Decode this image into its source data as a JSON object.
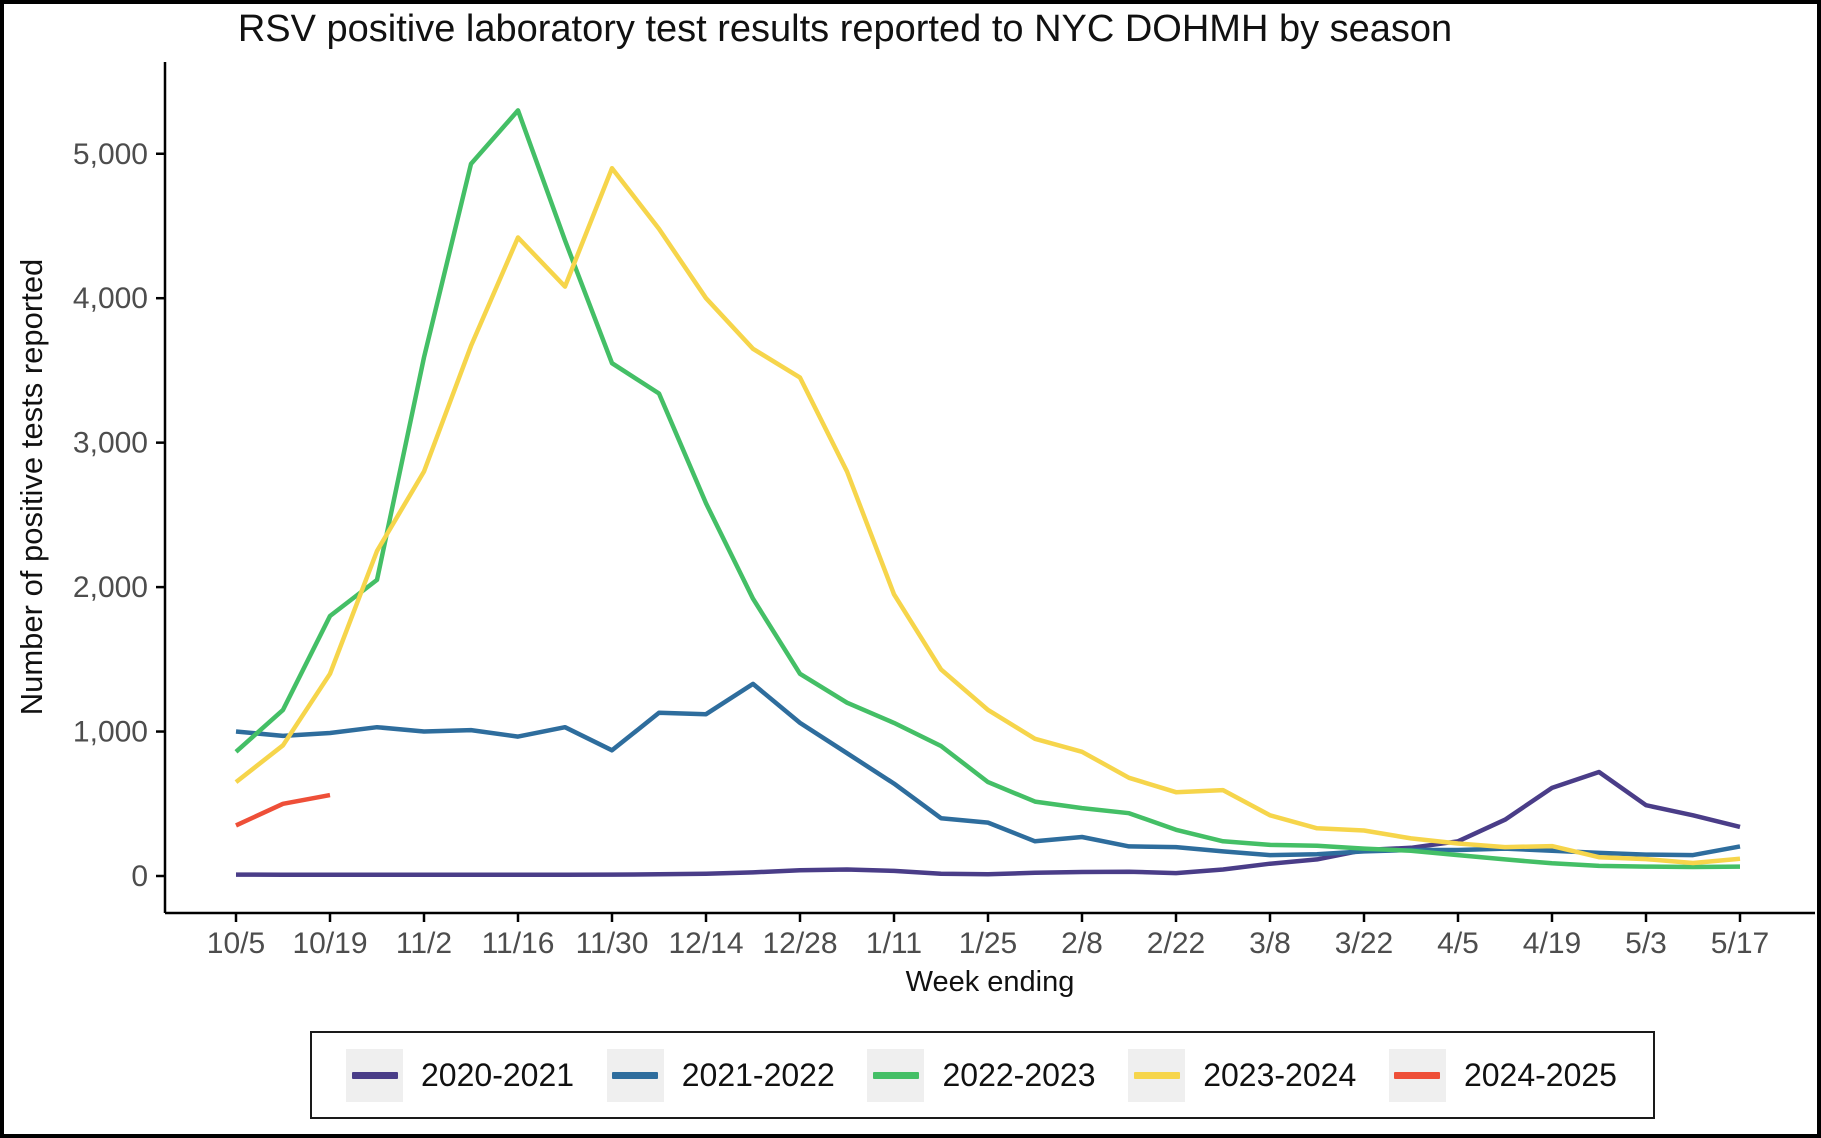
{
  "figure": {
    "title": "RSV positive laboratory test results reported to NYC DOHMH by season",
    "x_axis_label": "Week ending",
    "y_axis_label": "Number of positive tests reported"
  },
  "chart_data": {
    "type": "line",
    "title": "RSV positive laboratory test results reported to NYC DOHMH by season",
    "xlabel": "Week ending",
    "ylabel": "Number of positive tests reported",
    "grid": false,
    "legend_position": "bottom",
    "ylim": [
      0,
      5630
    ],
    "y_ticks": [
      0,
      1000,
      2000,
      3000,
      4000,
      5000
    ],
    "y_tick_labels": [
      "0",
      "1,000",
      "2,000",
      "3,000",
      "4,000",
      "5,000"
    ],
    "x": [
      "10/5",
      "10/12",
      "10/19",
      "10/26",
      "11/2",
      "11/9",
      "11/16",
      "11/23",
      "11/30",
      "12/7",
      "12/14",
      "12/21",
      "12/28",
      "1/4",
      "1/11",
      "1/18",
      "1/25",
      "2/1",
      "2/8",
      "2/15",
      "2/22",
      "3/1",
      "3/8",
      "3/15",
      "3/22",
      "3/29",
      "4/5",
      "4/12",
      "4/19",
      "4/26",
      "5/3",
      "5/10",
      "5/17"
    ],
    "x_tick_labels": [
      "10/5",
      "10/19",
      "11/2",
      "11/16",
      "11/30",
      "12/14",
      "12/28",
      "1/11",
      "1/25",
      "2/8",
      "2/22",
      "3/8",
      "3/22",
      "4/5",
      "4/19",
      "5/3",
      "5/17"
    ],
    "x_tick_week_step": 2,
    "series": [
      {
        "name": "2020-2021",
        "color": "#4a3d88",
        "values": [
          10,
          8,
          8,
          8,
          8,
          8,
          8,
          8,
          10,
          12,
          15,
          25,
          40,
          45,
          35,
          15,
          12,
          22,
          28,
          30,
          20,
          45,
          85,
          115,
          180,
          195,
          240,
          390,
          610,
          720,
          490,
          420,
          340
        ]
      },
      {
        "name": "2021-2022",
        "color": "#2e6d9d",
        "values": [
          1000,
          970,
          990,
          1030,
          1000,
          1010,
          965,
          1030,
          870,
          1130,
          1120,
          1330,
          1060,
          850,
          640,
          400,
          370,
          240,
          270,
          205,
          200,
          170,
          145,
          150,
          170,
          180,
          180,
          190,
          175,
          160,
          148,
          145,
          205
        ]
      },
      {
        "name": "2022-2023",
        "color": "#44bf66",
        "values": [
          860,
          1150,
          1800,
          2050,
          3590,
          4930,
          5300,
          4400,
          3550,
          3340,
          2580,
          1920,
          1400,
          1200,
          1060,
          900,
          650,
          515,
          470,
          435,
          320,
          240,
          215,
          210,
          190,
          175,
          145,
          115,
          88,
          70,
          65,
          62,
          65
        ]
      },
      {
        "name": "2023-2024",
        "color": "#f6d54b",
        "values": [
          650,
          905,
          1400,
          2250,
          2800,
          3670,
          4420,
          4080,
          4900,
          4480,
          4000,
          3650,
          3450,
          2800,
          1950,
          1430,
          1150,
          950,
          860,
          680,
          580,
          595,
          420,
          330,
          315,
          260,
          225,
          200,
          207,
          130,
          117,
          90,
          120
        ]
      },
      {
        "name": "2024-2025",
        "color": "#ee4f38",
        "values": [
          350,
          500,
          560,
          null,
          null,
          null,
          null,
          null,
          null,
          null,
          null,
          null,
          null,
          null,
          null,
          null,
          null,
          null,
          null,
          null,
          null,
          null,
          null,
          null,
          null,
          null,
          null,
          null,
          null,
          null,
          null,
          null,
          null
        ]
      }
    ]
  }
}
